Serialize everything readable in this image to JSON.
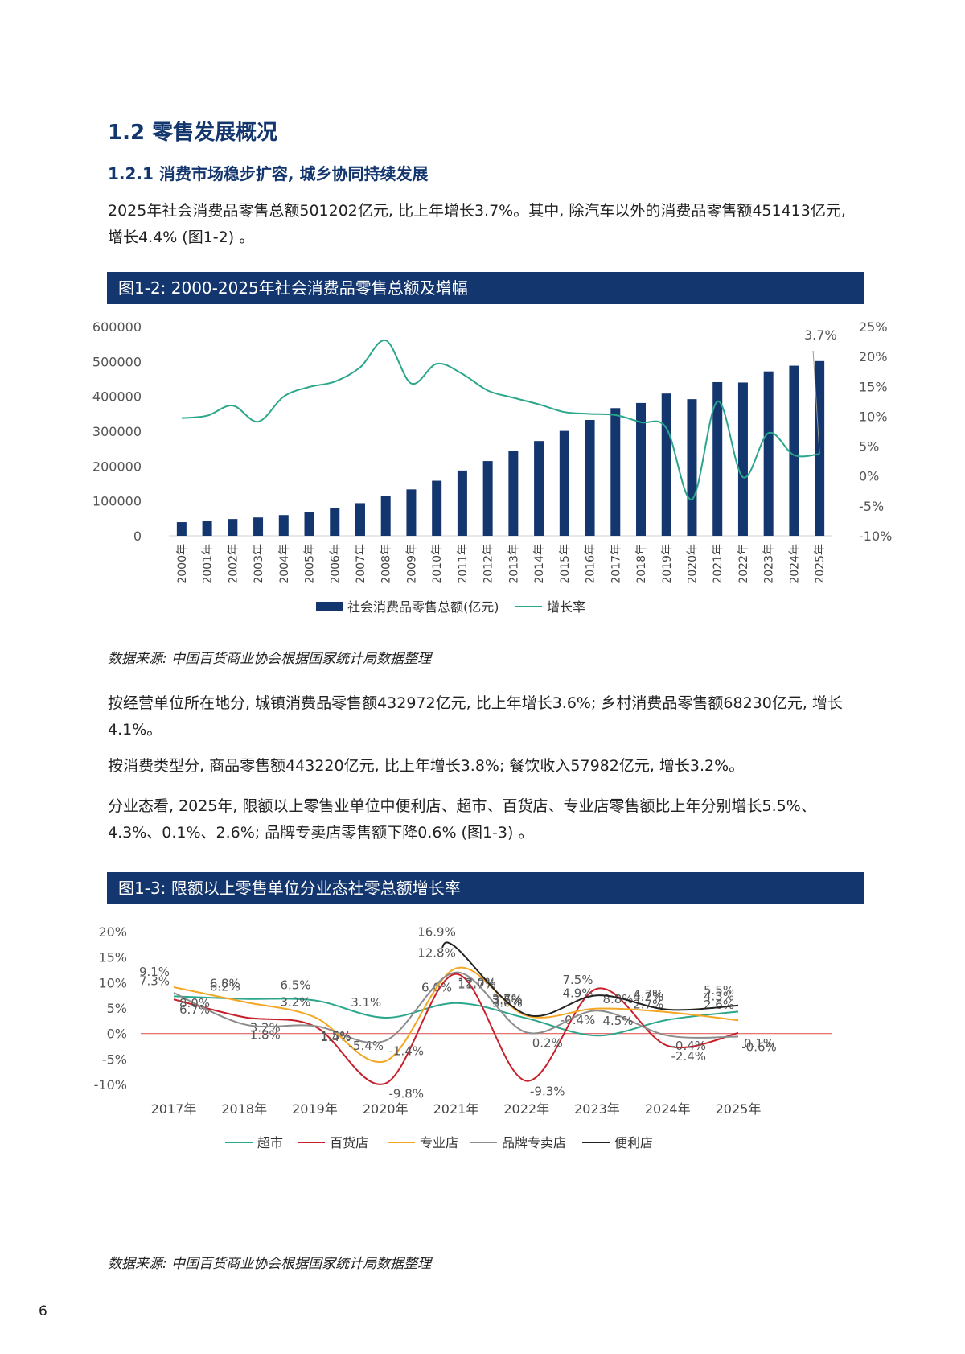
{
  "section_title": "1.2 零售发展概况",
  "subsection_title": "1.2.1 消费市场稳步扩容, 城乡协同持续发展",
  "paragraphs": [
    "2025年社会消费品零售总额501202亿元, 比上年增长3.7%。其中, 除汽车以外的消费品零售额451413亿元, 增长4.4% (图1-2) 。",
    "按经营单位所在地分, 城镇消费品零售额432972亿元, 比上年增长3.6%; 乡村消费品零售额68230亿元, 增长4.1%。",
    "按消费类型分, 商品零售额443220亿元, 比上年增长3.8%; 餐饮收入57982亿元, 增长3.2%。",
    "分业态看, 2025年, 限额以上零售业单位中便利店、超市、百货店、专业店零售额比上年分别增长5.5%、4.3%、0.1%、2.6%; 品牌专卖店零售额下降0.6% (图1-3) 。"
  ],
  "figure1": {
    "title": "图1-2: 2000-2025年社会消费品零售总额及增幅",
    "source": "数据来源: 中国百货商业协会根据国家统计局数据整理"
  },
  "figure2": {
    "title": "图1-3: 限额以上零售单位分业态社零总额增长率",
    "source": "数据来源: 中国百货商业协会根据国家统计局数据整理"
  },
  "page_number": "6",
  "colors": {
    "navy": "#14366e",
    "teal": "#2aa68a",
    "red": "#c8202a",
    "orange": "#f5a623",
    "gray": "#8c8c8c",
    "black": "#222222",
    "zero_line": "#e06060"
  },
  "chart_data": [
    {
      "type": "bar",
      "categories": [
        "2000年",
        "2001年",
        "2002年",
        "2003年",
        "2004年",
        "2005年",
        "2006年",
        "2007年",
        "2008年",
        "2009年",
        "2010年",
        "2011年",
        "2012年",
        "2013年",
        "2014年",
        "2015年",
        "2016年",
        "2017年",
        "2018年",
        "2019年",
        "2020年",
        "2021年",
        "2022年",
        "2023年",
        "2024年",
        "2025年"
      ],
      "series": [
        {
          "name": "社会消费品零售总额(亿元)",
          "type": "bar",
          "axis": "left",
          "values": [
            39106,
            43055,
            48136,
            52516,
            59501,
            68353,
            79145,
            93572,
            114830,
            133048,
            158008,
            187206,
            214433,
            242843,
            271896,
            300931,
            332316,
            366262,
            380987,
            408017,
            391981,
            440823,
            439733,
            471495,
            487895,
            501202
          ]
        },
        {
          "name": "增长率",
          "type": "line",
          "axis": "right",
          "values": [
            9.7,
            10.1,
            11.8,
            9.1,
            13.3,
            14.9,
            15.8,
            18.2,
            22.7,
            15.5,
            18.8,
            17.1,
            14.3,
            13.1,
            12.0,
            10.7,
            10.4,
            10.2,
            9.0,
            8.0,
            -3.9,
            12.5,
            -0.2,
            7.2,
            3.5,
            3.7
          ]
        }
      ],
      "ylim_left": [
        0,
        600000
      ],
      "yticks_left": [
        "600000",
        "500000",
        "400000",
        "300000",
        "200000",
        "100000",
        "0"
      ],
      "ylim_right": [
        -10,
        25
      ],
      "yticks_right": [
        "25%",
        "20%",
        "15%",
        "10%",
        "5%",
        "0%",
        "-5%",
        "-10%"
      ],
      "annotations": [
        "3.7%"
      ],
      "legend": [
        "社会消费品零售总额(亿元)",
        "增长率"
      ],
      "legend_position": "bottom",
      "grid": false
    },
    {
      "type": "line",
      "x": [
        "2017年",
        "2018年",
        "2019年",
        "2020年",
        "2021年",
        "2022年",
        "2023年",
        "2024年",
        "2025年"
      ],
      "series": [
        {
          "name": "超市",
          "values": [
            7.3,
            6.8,
            6.5,
            3.1,
            6.0,
            3.0,
            -0.4,
            2.7,
            4.3
          ]
        },
        {
          "name": "百货店",
          "values": [
            6.7,
            3.2,
            1.4,
            -9.8,
            11.7,
            -9.3,
            8.8,
            -2.4,
            0.1
          ]
        },
        {
          "name": "专业店",
          "values": [
            9.1,
            6.2,
            3.2,
            -5.4,
            12.8,
            3.5,
            4.9,
            4.2,
            2.6
          ]
        },
        {
          "name": "品牌专卖店",
          "values": [
            8.0,
            1.8,
            1.5,
            -1.4,
            12.0,
            0.2,
            4.5,
            -0.4,
            -0.6
          ]
        },
        {
          "name": "便利店",
          "values": [
            null,
            null,
            null,
            null,
            16.9,
            3.7,
            7.5,
            4.7,
            5.5
          ]
        }
      ],
      "ylim": [
        -10,
        20
      ],
      "yticks": [
        "20%",
        "15%",
        "10%",
        "5%",
        "0%",
        "-5%",
        "-10%"
      ],
      "legend": [
        "超市",
        "百货店",
        "专业店",
        "品牌专卖店",
        "便利店"
      ],
      "legend_position": "bottom",
      "grid": false
    }
  ]
}
